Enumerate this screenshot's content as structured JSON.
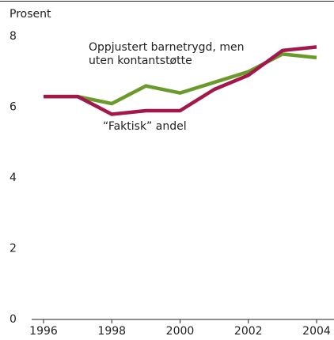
{
  "chart_data": {
    "type": "line",
    "y_label": "Prosent",
    "x": [
      1996,
      1997,
      1998,
      1999,
      2000,
      2001,
      2002,
      2003,
      2004
    ],
    "series": [
      {
        "name": "Oppjustert barnetrygd, men uten kontantstøtte",
        "color": "#6a9a2a",
        "values": [
          6.3,
          6.3,
          6.1,
          6.6,
          6.4,
          6.7,
          7.0,
          7.5,
          7.4
        ]
      },
      {
        "name": "“Faktisk” andel",
        "color": "#a3174a",
        "values": [
          6.3,
          6.3,
          5.8,
          5.9,
          5.9,
          6.5,
          6.9,
          7.6,
          7.7
        ]
      }
    ],
    "xlim": [
      1996,
      2004
    ],
    "xticks": [
      1996,
      1998,
      2000,
      2002,
      2004
    ],
    "ylim": [
      0,
      8
    ],
    "yticks": [
      0,
      2,
      4,
      6,
      8
    ],
    "grid": false
  }
}
